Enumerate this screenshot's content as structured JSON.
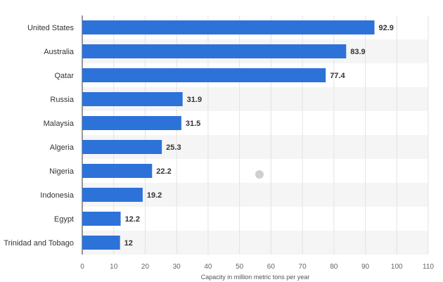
{
  "chart_data": {
    "type": "bar",
    "orientation": "horizontal",
    "title": "",
    "xlabel": "Capacity in million metric tons per year",
    "ylabel": "",
    "categories": [
      "United States",
      "Australia",
      "Qatar",
      "Russia",
      "Malaysia",
      "Algeria",
      "Nigeria",
      "Indonesia",
      "Egypt",
      "Trinidad and Tobago"
    ],
    "values": [
      92.9,
      83.9,
      77.4,
      31.9,
      31.5,
      25.3,
      22.2,
      19.2,
      12.2,
      12
    ],
    "value_labels": [
      "92.9",
      "83.9",
      "77.4",
      "31.9",
      "31.5",
      "25.3",
      "22.2",
      "19.2",
      "12.2",
      "12"
    ],
    "xlim": [
      0,
      110
    ],
    "xticks": [
      "0",
      "10",
      "20",
      "30",
      "40",
      "50",
      "60",
      "70",
      "80",
      "90",
      "100",
      "110"
    ],
    "grid": true,
    "alternating_row_bands": true,
    "bar_color": "#2d72d9",
    "band_color": "#f5f5f5",
    "grid_color": "#e3e3e3"
  }
}
